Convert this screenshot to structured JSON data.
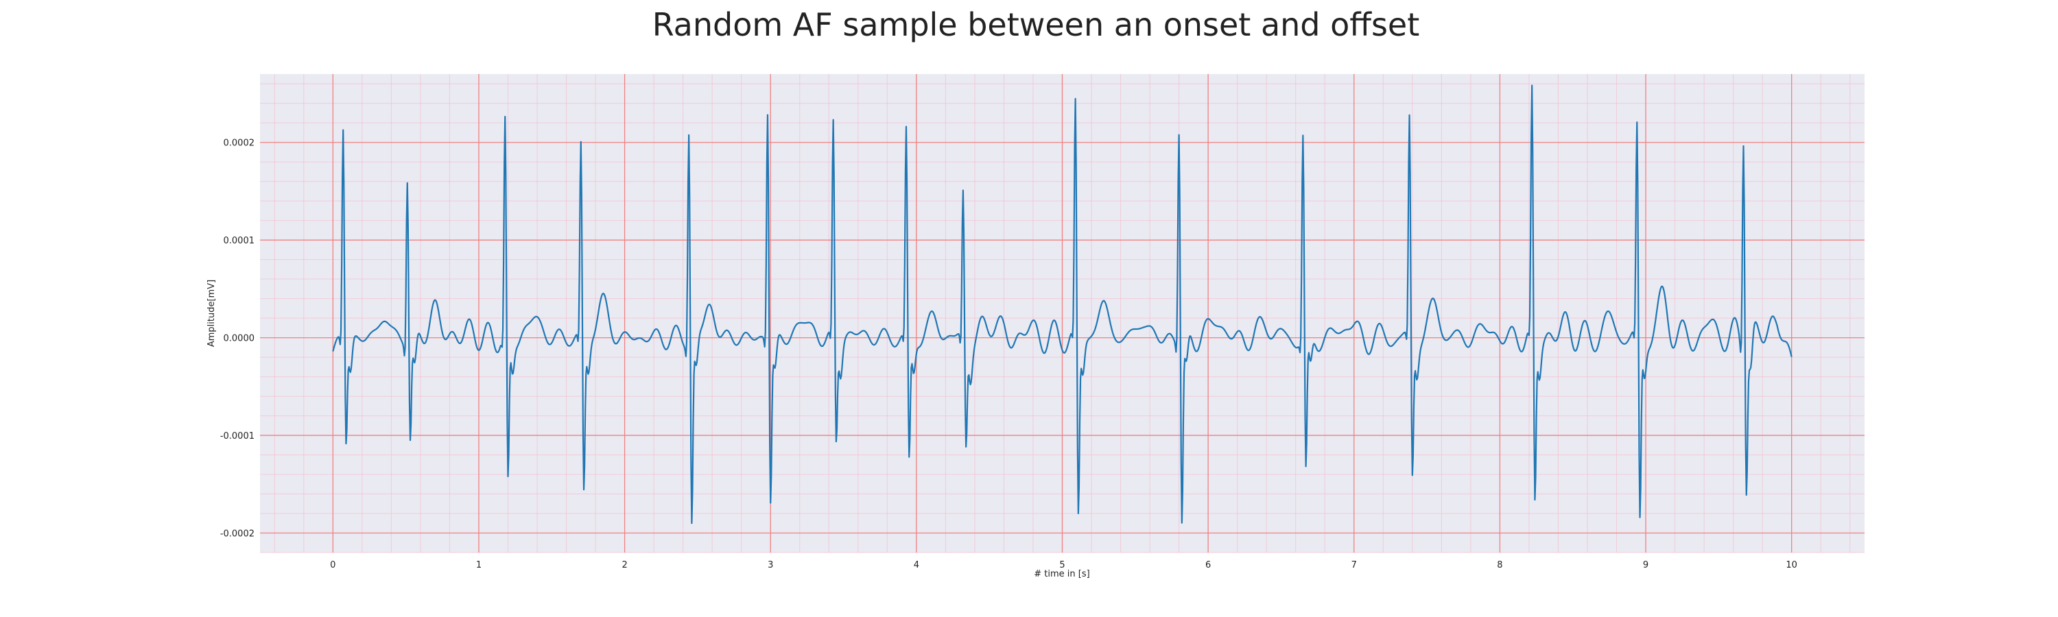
{
  "chart_data": {
    "type": "line",
    "title": "Random AF sample between an onset and offset",
    "xlabel": "# time in [s]",
    "ylabel": "Amplitude[mV]",
    "xlim": [
      -0.5,
      10.5
    ],
    "ylim": [
      -0.00022,
      0.00027
    ],
    "xticks": [
      0,
      1,
      2,
      3,
      4,
      5,
      6,
      7,
      8,
      9,
      10
    ],
    "xtick_labels": [
      "0",
      "1",
      "2",
      "3",
      "4",
      "5",
      "6",
      "7",
      "8",
      "9",
      "10"
    ],
    "yticks": [
      -0.0002,
      -0.0001,
      0.0,
      0.0001,
      0.0002
    ],
    "ytick_labels": [
      "-0.0002",
      "-0.0001",
      "0.0000",
      "0.0001",
      "0.0002"
    ],
    "grid": true,
    "minor_grid": true,
    "background_color": "#eaeaf2",
    "major_grid_color": "#f08080",
    "minor_grid_color": "#f4b8c8",
    "series_color": "#1f77b4",
    "legend": "none",
    "duration_s": 10,
    "sample_rate_hz": 200,
    "beats": [
      {
        "t": 0.07,
        "peak": 0.000218,
        "trough": -0.00011
      },
      {
        "t": 0.51,
        "peak": 0.000171,
        "trough": -0.000107
      },
      {
        "t": 1.18,
        "peak": 0.000222,
        "trough": -0.000159
      },
      {
        "t": 1.7,
        "peak": 0.0002,
        "trough": -0.000164
      },
      {
        "t": 2.44,
        "peak": 0.000221,
        "trough": -0.000196
      },
      {
        "t": 2.98,
        "peak": 0.000238,
        "trough": -0.000172
      },
      {
        "t": 3.43,
        "peak": 0.000221,
        "trough": -0.000111
      },
      {
        "t": 3.93,
        "peak": 0.000213,
        "trough": -0.000134
      },
      {
        "t": 4.32,
        "peak": 0.000151,
        "trough": -0.000113
      },
      {
        "t": 5.09,
        "peak": 0.000242,
        "trough": -0.00019
      },
      {
        "t": 5.8,
        "peak": 0.000221,
        "trough": -0.000195
      },
      {
        "t": 6.65,
        "peak": 0.00021,
        "trough": -0.000148
      },
      {
        "t": 7.38,
        "peak": 0.000227,
        "trough": -0.000148
      },
      {
        "t": 8.22,
        "peak": 0.000252,
        "trough": -0.000177
      },
      {
        "t": 8.94,
        "peak": 0.000218,
        "trough": -0.000194
      },
      {
        "t": 9.67,
        "peak": 0.000222,
        "trough": -0.000147
      }
    ],
    "baseline_waves": [
      {
        "t": 0.35,
        "amp": 2.2e-05
      },
      {
        "t": 0.7,
        "amp": 3e-05
      },
      {
        "t": 0.93,
        "amp": 8e-06
      },
      {
        "t": 1.38,
        "amp": 2.4e-05
      },
      {
        "t": 1.85,
        "amp": 3.8e-05
      },
      {
        "t": 2.58,
        "amp": 3.3e-05
      },
      {
        "t": 3.23,
        "amp": 2.2e-05
      },
      {
        "t": 3.6,
        "amp": 6e-06
      },
      {
        "t": 4.12,
        "amp": 2e-05
      },
      {
        "t": 4.52,
        "amp": 2.2e-05
      },
      {
        "t": 4.78,
        "amp": 1e-05
      },
      {
        "t": 5.28,
        "amp": 3.5e-05
      },
      {
        "t": 5.55,
        "amp": 1.8e-05
      },
      {
        "t": 6.05,
        "amp": 2.2e-05
      },
      {
        "t": 6.4,
        "amp": 1.6e-05
      },
      {
        "t": 6.95,
        "amp": 1.8e-05
      },
      {
        "t": 7.55,
        "amp": 3.4e-05
      },
      {
        "t": 7.9,
        "amp": 1.2e-05
      },
      {
        "t": 8.45,
        "amp": 1.5e-05
      },
      {
        "t": 8.75,
        "amp": 2e-05
      },
      {
        "t": 9.12,
        "amp": 4e-05
      },
      {
        "t": 9.45,
        "amp": 1.5e-05
      },
      {
        "t": 9.87,
        "amp": 2e-05
      }
    ]
  }
}
